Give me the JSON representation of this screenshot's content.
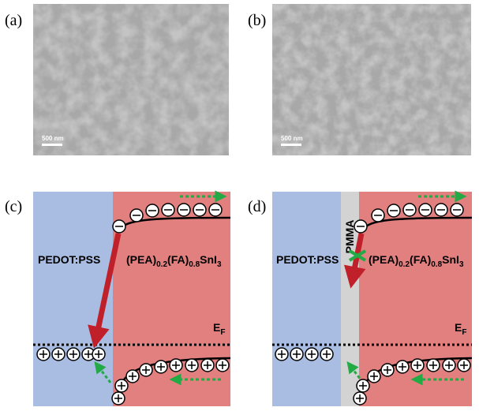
{
  "panels": [
    {
      "label": "(a)",
      "scale_bar": "500 nm"
    },
    {
      "label": "(b)",
      "scale_bar": "500 nm"
    },
    {
      "label": "(c)",
      "left_layer": "PEDOT:PSS",
      "right_layer": [
        "(PEA)",
        "0.2",
        "(FA)",
        "0.8",
        "SnI",
        "3"
      ],
      "fermi": [
        "E",
        "F"
      ]
    },
    {
      "label": "(d)",
      "left_layer": "PEDOT:PSS",
      "interlayer": "PMMA",
      "right_layer": [
        "(PEA)",
        "0.2",
        "(FA)",
        "0.8",
        "SnI",
        "3"
      ],
      "fermi": [
        "E",
        "F"
      ]
    }
  ]
}
